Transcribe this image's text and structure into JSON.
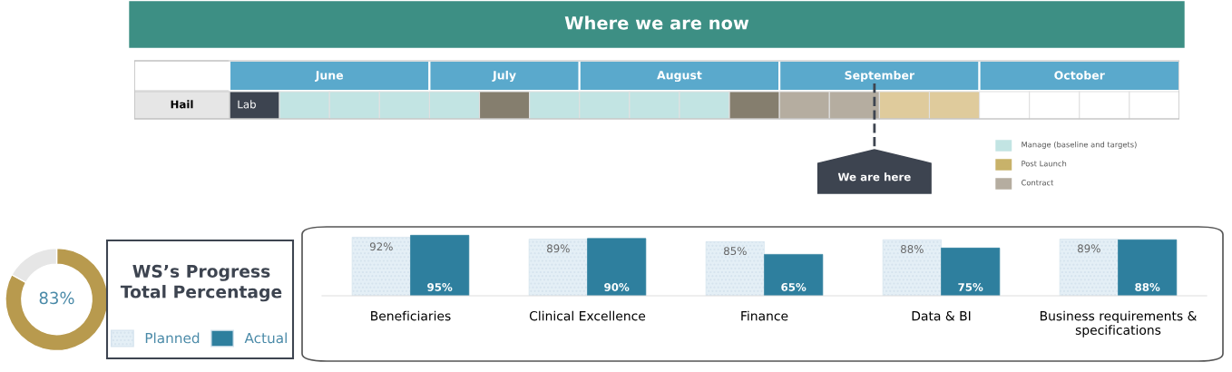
{
  "chart_data": [
    {
      "type": "other",
      "title": "Where we are now",
      "categories": [
        "June",
        "July",
        "August",
        "September",
        "October"
      ],
      "y_categories": [
        "Hail"
      ],
      "colors": [
        [
          "#3d4450",
          "#c2e4e3",
          "#c2e4e3",
          "#c2e4e3"
        ],
        [
          "#c2e4e3",
          "#857e6e",
          "#c2e4e3"
        ],
        [
          "#c2e4e3",
          "#c2e4e3",
          "#c2e4e3",
          "#857e6e"
        ],
        [
          "#b5ada0",
          "#b5ada0",
          "#dfcb9c",
          "#dfcb9c"
        ],
        [
          "#ffffff",
          "#ffffff",
          "#ffffff",
          "#ffffff"
        ]
      ],
      "cell_labels": [
        "Lab"
      ],
      "annotations": [
        {
          "text": "We are here",
          "x": "September"
        },
        "Manage (baseline and targets)",
        "Post Launch",
        "Contract"
      ]
    },
    {
      "type": "donut",
      "title": "WS’s Progress Total Percentage",
      "categories": [
        null,
        null
      ],
      "values": [
        83,
        17
      ],
      "colors": [
        "#b89a4e",
        "#e6e6e6"
      ],
      "value_labels": [
        "83%",
        null
      ]
    },
    {
      "type": "bar",
      "categories": [
        "Beneficiaries",
        "Clinical Excellence",
        "Finance",
        "Data & BI",
        "Business requirements & specifications"
      ],
      "series": [
        {
          "name": "Planned",
          "color": "#e4eff6",
          "values": [
            92,
            89,
            85,
            88,
            89
          ],
          "value_labels": [
            "92%",
            "89%",
            "85%",
            "88%",
            "89%"
          ]
        },
        {
          "name": "Actual",
          "color": "#2e7f9e",
          "values": [
            95,
            90,
            65,
            75,
            88
          ],
          "value_labels": [
            "95%",
            "90%",
            "65%",
            "75%",
            "88%"
          ]
        }
      ],
      "legend": "left"
    }
  ]
}
